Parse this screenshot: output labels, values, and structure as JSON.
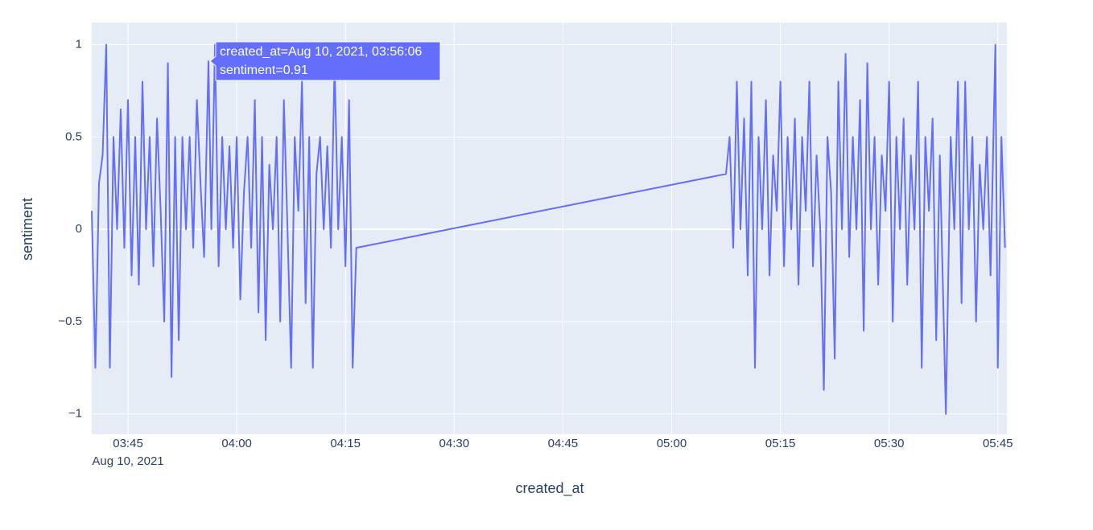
{
  "chart_data": {
    "type": "line",
    "x_title": "created_at",
    "y_title": "sentiment",
    "x_date_label": "Aug 10, 2021",
    "color": "#636efa",
    "x": [
      "03:40:00",
      "03:40:30",
      "03:41:00",
      "03:41:30",
      "03:42:00",
      "03:42:30",
      "03:43:00",
      "03:43:30",
      "03:44:00",
      "03:44:30",
      "03:45:00",
      "03:45:30",
      "03:46:00",
      "03:46:30",
      "03:47:00",
      "03:47:30",
      "03:48:00",
      "03:48:30",
      "03:49:00",
      "03:49:30",
      "03:50:00",
      "03:50:30",
      "03:51:00",
      "03:51:30",
      "03:52:00",
      "03:52:30",
      "03:53:00",
      "03:53:30",
      "03:54:00",
      "03:54:30",
      "03:55:00",
      "03:55:30",
      "03:56:06",
      "03:56:30",
      "03:57:00",
      "03:57:30",
      "03:58:00",
      "03:58:30",
      "03:59:00",
      "03:59:30",
      "04:00:00",
      "04:00:30",
      "04:01:00",
      "04:01:30",
      "04:02:00",
      "04:02:30",
      "04:03:00",
      "04:03:30",
      "04:04:00",
      "04:04:30",
      "04:05:00",
      "04:05:30",
      "04:06:00",
      "04:06:30",
      "04:07:00",
      "04:07:30",
      "04:08:00",
      "04:08:30",
      "04:09:00",
      "04:09:30",
      "04:10:00",
      "04:10:30",
      "04:11:00",
      "04:11:30",
      "04:12:00",
      "04:12:30",
      "04:13:00",
      "04:13:30",
      "04:14:00",
      "04:14:30",
      "04:15:00",
      "04:15:30",
      "04:16:00",
      "04:16:30",
      "05:07:30",
      "05:08:00",
      "05:08:30",
      "05:09:00",
      "05:09:30",
      "05:10:00",
      "05:10:30",
      "05:11:00",
      "05:11:30",
      "05:12:00",
      "05:12:30",
      "05:13:00",
      "05:13:30",
      "05:14:00",
      "05:14:30",
      "05:15:00",
      "05:15:30",
      "05:16:00",
      "05:16:30",
      "05:17:00",
      "05:17:30",
      "05:18:00",
      "05:18:30",
      "05:19:00",
      "05:19:30",
      "05:20:00",
      "05:20:30",
      "05:21:00",
      "05:21:30",
      "05:22:00",
      "05:22:30",
      "05:23:00",
      "05:23:30",
      "05:24:00",
      "05:24:30",
      "05:25:00",
      "05:25:30",
      "05:26:00",
      "05:26:30",
      "05:27:00",
      "05:27:30",
      "05:28:00",
      "05:28:30",
      "05:29:00",
      "05:29:30",
      "05:30:00",
      "05:30:30",
      "05:31:00",
      "05:31:30",
      "05:32:00",
      "05:32:30",
      "05:33:00",
      "05:33:30",
      "05:34:00",
      "05:34:30",
      "05:35:00",
      "05:35:30",
      "05:36:00",
      "05:36:30",
      "05:37:00",
      "05:37:50",
      "05:38:30",
      "05:39:00",
      "05:39:30",
      "05:40:00",
      "05:40:30",
      "05:41:00",
      "05:41:30",
      "05:42:00",
      "05:42:30",
      "05:43:00",
      "05:43:30",
      "05:44:00",
      "05:44:40",
      "05:45:00",
      "05:45:30",
      "05:46:00"
    ],
    "values": [
      0.1,
      -0.75,
      0.25,
      0.4,
      1.0,
      -0.75,
      0.5,
      0,
      0.65,
      -0.1,
      0.7,
      -0.25,
      0.5,
      -0.3,
      0.8,
      0,
      0.5,
      -0.2,
      0.6,
      0.1,
      -0.5,
      0.9,
      -0.8,
      0.5,
      -0.6,
      0.5,
      0,
      0.5,
      -0.1,
      0.7,
      0.25,
      -0.15,
      0.91,
      0,
      1.0,
      -0.2,
      0.5,
      0,
      0.45,
      -0.1,
      0.5,
      -0.38,
      0.2,
      0.5,
      -0.1,
      0.7,
      -0.45,
      0.5,
      -0.6,
      0.35,
      0,
      0.5,
      -0.5,
      0.7,
      0,
      -0.75,
      0.5,
      0.1,
      0.8,
      -0.4,
      0.5,
      -0.75,
      0.3,
      0.5,
      0,
      0.45,
      -0.1,
      0.9,
      0,
      0.5,
      -0.2,
      0.7,
      -0.75,
      -0.1,
      0.3,
      0.5,
      -0.1,
      0.8,
      0,
      0.6,
      -0.25,
      0.8,
      -0.75,
      0.5,
      0,
      0.7,
      -0.25,
      0.4,
      0.1,
      0.8,
      -0.2,
      0.5,
      0,
      0.6,
      -0.3,
      0.5,
      0.1,
      0.8,
      -0.2,
      0.4,
      0,
      -0.87,
      0.5,
      0.2,
      -0.7,
      0.8,
      0,
      0.95,
      -0.15,
      0.5,
      0,
      0.7,
      -0.55,
      0.9,
      0,
      0.5,
      -0.3,
      0.4,
      0.1,
      0.8,
      -0.5,
      0.5,
      0,
      0.6,
      -0.3,
      0.4,
      0,
      0.8,
      -0.75,
      0.5,
      0.1,
      0.6,
      -0.6,
      0.4,
      -1.0,
      0.5,
      0,
      0.8,
      -0.4,
      0.8,
      0,
      0.5,
      -0.5,
      0.35,
      0,
      0.5,
      -0.25,
      1.0,
      -0.75,
      0.5,
      -0.1
    ],
    "xlim": [
      "03:40:00",
      "05:46:15"
    ],
    "xticks": [
      "03:45",
      "04:00",
      "04:15",
      "04:30",
      "04:45",
      "05:00",
      "05:15",
      "05:30",
      "05:45"
    ],
    "ylim": [
      -1.11,
      1.12
    ],
    "yticks": [
      {
        "value": -1,
        "label": "−1"
      },
      {
        "value": -0.5,
        "label": "−0.5"
      },
      0,
      0.5,
      1
    ],
    "grid": true,
    "hover": {
      "lines": [
        "created_at=Aug 10, 2021, 03:56:06",
        "sentiment=0.91"
      ]
    }
  }
}
